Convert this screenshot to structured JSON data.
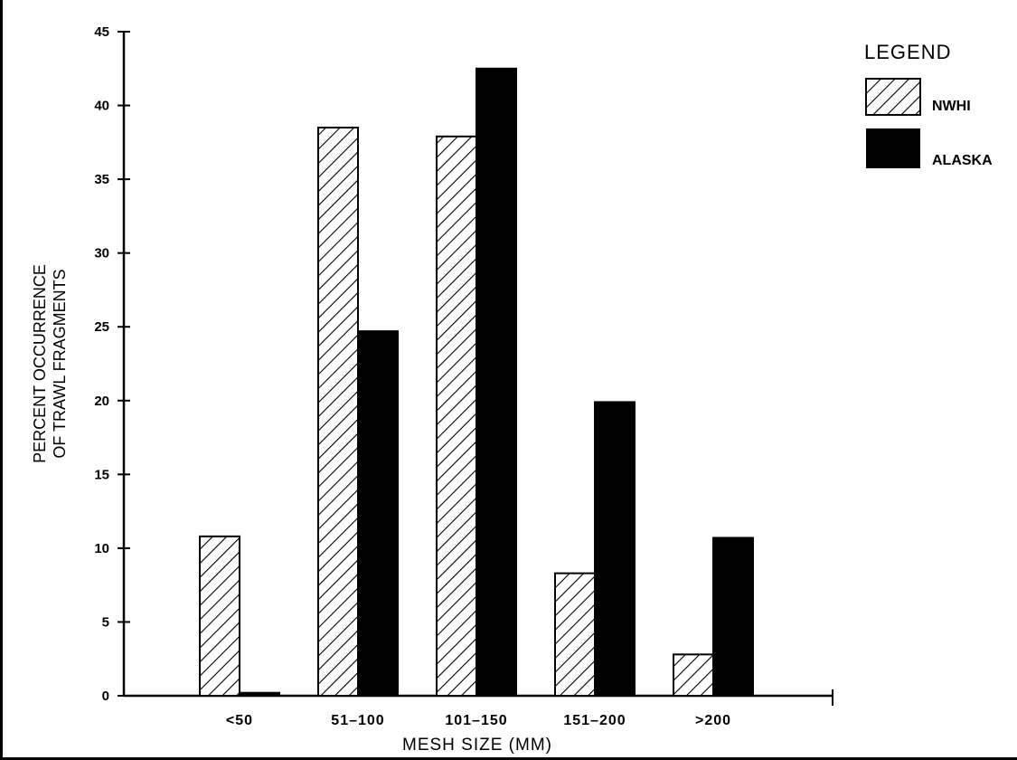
{
  "chart_data": {
    "type": "bar",
    "categories": [
      "<50",
      "51–100",
      "101–150",
      "151–200",
      ">200"
    ],
    "series": [
      {
        "name": "NWHI",
        "values": [
          10.8,
          38.5,
          37.9,
          8.3,
          2.8
        ],
        "fill": "hatch"
      },
      {
        "name": "ALASKA",
        "values": [
          0.2,
          24.7,
          42.5,
          19.9,
          10.7
        ],
        "fill": "solid"
      }
    ],
    "xlabel": "MESH SIZE (MM)",
    "ylabel_lines": [
      "PERCENT OCCURRENCE",
      "OF TRAWL FRAGMENTS"
    ],
    "ylim": [
      0,
      45
    ],
    "yticks": [
      "0",
      "5",
      "10",
      "15",
      "20",
      "25",
      "30",
      "35",
      "40",
      "45"
    ],
    "legend": {
      "title": "LEGEND",
      "placement": "top-right"
    },
    "grid": false,
    "colors": {
      "bar": "#000000",
      "background": "#ffffff"
    }
  }
}
